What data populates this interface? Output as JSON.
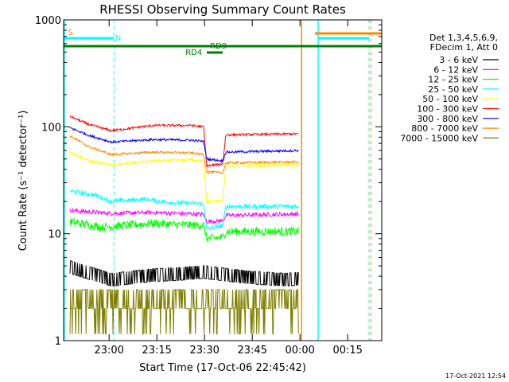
{
  "chart_data": {
    "type": "line",
    "title": "RHESSI Observing Summary Count Rates",
    "xlabel": "Start Time (17-Oct-06 22:45:42)",
    "ylabel": "Count Rate (s⁻¹ detector⁻¹)",
    "yscale": "log",
    "ylim": [
      1,
      1000
    ],
    "xlim_minutes_from_start": [
      0,
      100
    ],
    "x_ticks": [
      {
        "t": 14.3,
        "label": "23:00"
      },
      {
        "t": 29.3,
        "label": "23:15"
      },
      {
        "t": 44.3,
        "label": "23:30"
      },
      {
        "t": 59.3,
        "label": "23:45"
      },
      {
        "t": 74.3,
        "label": "00:00"
      },
      {
        "t": 89.3,
        "label": "00:15"
      }
    ],
    "y_ticks": [
      {
        "v": 1,
        "label": "1"
      },
      {
        "v": 10,
        "label": "10"
      },
      {
        "v": 100,
        "label": "100"
      },
      {
        "v": 1000,
        "label": "1000"
      }
    ],
    "legend_header": [
      "Det 1,3,4,5,6,9,",
      "FDecim 1, Att 0"
    ],
    "series": [
      {
        "name": "3 - 6 keV",
        "color": "#000000",
        "noise": 0.22,
        "points": [
          [
            2,
            5.0
          ],
          [
            15,
            3.8
          ],
          [
            28,
            4.2
          ],
          [
            36,
            4.3
          ],
          [
            44,
            4.5
          ],
          [
            58,
            4.0
          ],
          [
            70,
            3.8
          ],
          [
            74,
            3.9
          ]
        ]
      },
      {
        "name": "6 - 12 keV",
        "color": "#ff00ff",
        "noise": 0.045,
        "points": [
          [
            2,
            16.5
          ],
          [
            15,
            15.5
          ],
          [
            28,
            15.8
          ],
          [
            44,
            15.2
          ],
          [
            45,
            13.0
          ],
          [
            50,
            13.2
          ],
          [
            51,
            14.8
          ],
          [
            74,
            15.3
          ]
        ]
      },
      {
        "name": "12 - 25 keV",
        "color": "#00ff00",
        "noise": 0.09,
        "points": [
          [
            2,
            13.0
          ],
          [
            12,
            11.5
          ],
          [
            28,
            12.5
          ],
          [
            40,
            12.0
          ],
          [
            44,
            12.0
          ],
          [
            45,
            9.0
          ],
          [
            50,
            9.2
          ],
          [
            51,
            10.5
          ],
          [
            74,
            10.5
          ]
        ]
      },
      {
        "name": "25 - 50 keV",
        "color": "#00ffff",
        "noise": 0.05,
        "points": [
          [
            2,
            25.0
          ],
          [
            10,
            23.0
          ],
          [
            15,
            20.0
          ],
          [
            25,
            21.0
          ],
          [
            35,
            19.5
          ],
          [
            44,
            19.0
          ],
          [
            45,
            11.0
          ],
          [
            50,
            12.0
          ],
          [
            51,
            18.0
          ],
          [
            74,
            18.0
          ]
        ]
      },
      {
        "name": "50 - 100 keV",
        "color": "#ffff00",
        "noise": 0.03,
        "points": [
          [
            2,
            58.0
          ],
          [
            8,
            48.0
          ],
          [
            15,
            44.0
          ],
          [
            28,
            48.0
          ],
          [
            40,
            49.0
          ],
          [
            44,
            47.0
          ],
          [
            45,
            20.0
          ],
          [
            50,
            20.5
          ],
          [
            51,
            43.0
          ],
          [
            74,
            44.0
          ]
        ]
      },
      {
        "name": "100 - 300 keV",
        "color": "#ff0000",
        "noise": 0.025,
        "points": [
          [
            2,
            125.0
          ],
          [
            8,
            105.0
          ],
          [
            15,
            92.0
          ],
          [
            28,
            103.0
          ],
          [
            40,
            103.0
          ],
          [
            44,
            100.0
          ],
          [
            45,
            43.0
          ],
          [
            50,
            45.0
          ],
          [
            51,
            84.0
          ],
          [
            74,
            86.0
          ]
        ]
      },
      {
        "name": "300 - 800 keV",
        "color": "#0000ff",
        "noise": 0.025,
        "points": [
          [
            2,
            98.0
          ],
          [
            8,
            83.0
          ],
          [
            15,
            72.0
          ],
          [
            28,
            76.0
          ],
          [
            40,
            75.0
          ],
          [
            44,
            73.0
          ],
          [
            45,
            50.0
          ],
          [
            50,
            48.0
          ],
          [
            51,
            58.0
          ],
          [
            74,
            60.0
          ]
        ]
      },
      {
        "name": "800 - 7000 keV",
        "color": "#ff8800",
        "noise": 0.025,
        "points": [
          [
            2,
            82.0
          ],
          [
            8,
            65.0
          ],
          [
            15,
            55.0
          ],
          [
            28,
            58.0
          ],
          [
            40,
            57.0
          ],
          [
            44,
            55.0
          ],
          [
            45,
            38.0
          ],
          [
            50,
            37.0
          ],
          [
            51,
            46.0
          ],
          [
            74,
            47.0
          ]
        ]
      },
      {
        "name": "7000 - 15000 keV",
        "color": "#808000",
        "noise": 0.0,
        "points": [
          [
            2,
            2.5
          ],
          [
            74,
            2.5
          ]
        ]
      }
    ],
    "flag_bars": [
      {
        "label": "S",
        "color": "#ff8800"
      },
      {
        "label": "N",
        "color": "#00ffff"
      },
      {
        "label": "RD9",
        "color": "#008000"
      },
      {
        "label": "RD4",
        "color": "#008000"
      }
    ],
    "timestamp": "17-Oct-2021 12:54"
  }
}
